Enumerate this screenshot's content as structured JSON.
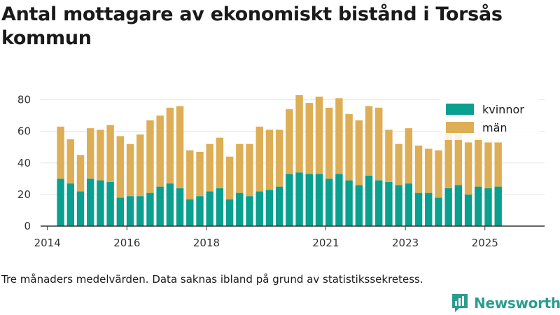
{
  "title": "Antal mottagare av ekonomiskt bistånd i Torsås kommun",
  "footnote": "Tre månaders medelvärden. Data saknas ibland på grund av statistikssekretess.",
  "brand": {
    "name": "Newsworthy",
    "logo_icon": "bar-chart-speech-bubble-icon"
  },
  "colors": {
    "kvinnor": "#0aa08f",
    "man": "#ddae55",
    "axis": "#333333",
    "grid": "#e6e6e6",
    "brand": "#2a9d8f"
  },
  "chart_data": {
    "type": "bar",
    "stacked": true,
    "ylim": [
      0,
      90
    ],
    "yticks": [
      0,
      20,
      40,
      60,
      80
    ],
    "xlim": [
      2013.83,
      2026.5
    ],
    "xticks": [
      "2014",
      "2016",
      "2018",
      "2021",
      "2023",
      "2025"
    ],
    "xtick_values": [
      2014,
      2016,
      2018,
      2021,
      2023,
      2025
    ],
    "grid": true,
    "legend_position": "top-right",
    "x": [
      2014.3333,
      2014.5833,
      2014.8333,
      2015.0833,
      2015.3333,
      2015.5833,
      2015.8333,
      2016.0833,
      2016.3333,
      2016.5833,
      2016.8333,
      2017.0833,
      2017.3333,
      2017.5833,
      2017.8333,
      2018.0833,
      2018.3333,
      2018.5833,
      2018.8333,
      2019.0833,
      2019.3333,
      2019.5833,
      2019.8333,
      2020.0833,
      2020.3333,
      2020.5833,
      2020.8333,
      2021.0833,
      2021.3333,
      2021.5833,
      2021.8333,
      2022.0833,
      2022.3333,
      2022.5833,
      2022.8333,
      2023.0833,
      2023.3333,
      2023.5833,
      2023.8333,
      2024.0833,
      2024.3333,
      2024.5833,
      2024.8333,
      2025.0833,
      2025.3333
    ],
    "series": [
      {
        "name": "kvinnor",
        "values": [
          30,
          27,
          22,
          30,
          29,
          28,
          18,
          19,
          19,
          21,
          25,
          27,
          24,
          17,
          19,
          22,
          24,
          17,
          21,
          19,
          22,
          23,
          25,
          33,
          34,
          33,
          33,
          30,
          33,
          29,
          26,
          32,
          29,
          28,
          26,
          27,
          21,
          21,
          18,
          24,
          26,
          20,
          25,
          24,
          25
        ]
      },
      {
        "name": "män",
        "values": [
          33,
          28,
          23,
          32,
          32,
          36,
          39,
          33,
          39,
          46,
          45,
          48,
          52,
          31,
          28,
          30,
          32,
          27,
          31,
          33,
          41,
          38,
          36,
          41,
          49,
          45,
          49,
          45,
          48,
          42,
          41,
          44,
          46,
          33,
          26,
          35,
          30,
          28,
          30,
          35,
          33,
          33,
          31,
          29,
          28
        ]
      }
    ]
  }
}
